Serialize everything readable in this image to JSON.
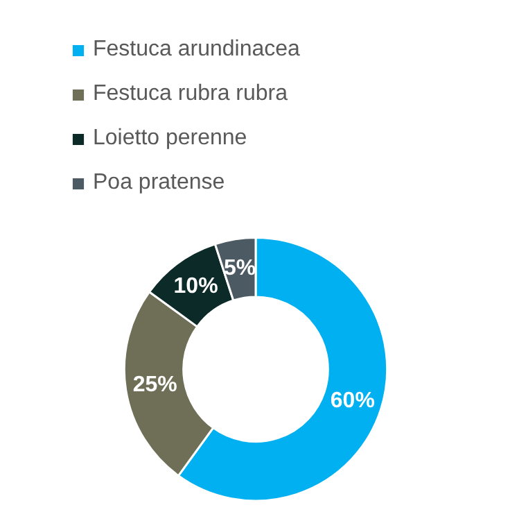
{
  "chart_data": {
    "type": "donut",
    "categories": [
      "Festuca arundinacea",
      "Festuca rubra rubra",
      "Loietto perenne",
      "Poa pratense"
    ],
    "values": [
      60,
      25,
      10,
      5
    ],
    "colors": [
      "#00b0f0",
      "#6f6f57",
      "#0b2a28",
      "#4b5a63"
    ],
    "value_labels": [
      "60%",
      "25%",
      "10%",
      "5%"
    ],
    "legend": "top"
  }
}
